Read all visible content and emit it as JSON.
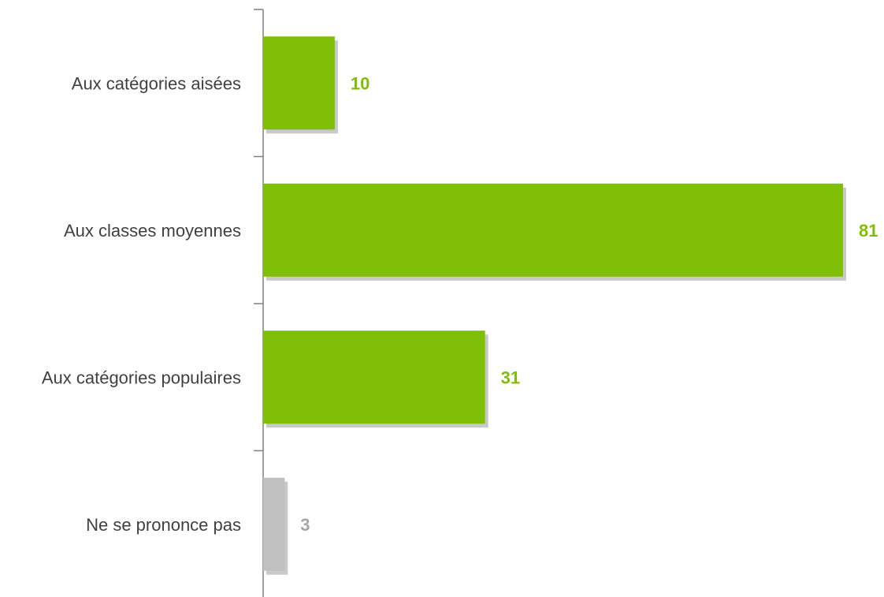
{
  "chart_data": {
    "type": "bar",
    "orientation": "horizontal",
    "title": "",
    "xlabel": "",
    "ylabel": "",
    "grid": false,
    "legend": "none",
    "xlim": [
      0,
      81
    ],
    "categories": [
      "Aux catégories aisées",
      "Aux classes moyennes",
      "Aux catégories populaires",
      "Ne se prononce pas"
    ],
    "values": [
      10,
      81,
      31,
      3
    ],
    "value_labels": [
      "10",
      "81",
      "31",
      "3"
    ],
    "bar_colors": [
      "#7fbf08",
      "#7fbf08",
      "#7fbf08",
      "#c0c0c0"
    ],
    "label_colors": [
      "#7fbf08",
      "#7fbf08",
      "#7fbf08",
      "#a6a6a6"
    ],
    "axis_color": "#808080",
    "shadow_color": "#bfbfbf"
  }
}
